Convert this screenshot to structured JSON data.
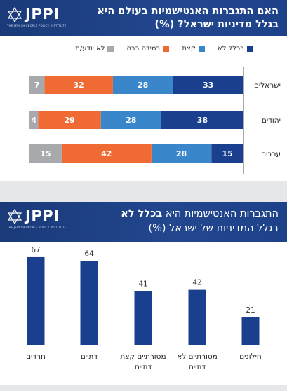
{
  "panel1": {
    "logo": {
      "name": "JPPI",
      "tagline": "THE JEWISH PEOPLE POLICY INSTITUTE"
    },
    "title": "האם התגברות האנטישמיות בעולם היא בגלל מדיניות ישראל? (%)",
    "legend": [
      {
        "label": "בכלל לא",
        "color": "#1b3f8f"
      },
      {
        "label": "קצת",
        "color": "#3a86cb"
      },
      {
        "label": "במידה רבה",
        "color": "#f06a33"
      },
      {
        "label": "לא יודע/ת",
        "color": "#a7a9ac"
      }
    ]
  },
  "panel2": {
    "logo": {
      "name": "JPPI",
      "tagline": "THE JEWISH PEOPLE POLICY INSTITUTE"
    },
    "title_part1": "התגברות האנטישמיות היא ",
    "title_bold": "בכלל לא",
    "title_part2": "בגלל המדיניות של ישראל (%)"
  },
  "chart_data": [
    {
      "type": "bar",
      "orientation": "horizontal-stacked",
      "categories": [
        "ישראלים",
        "יהודים",
        "ערבים"
      ],
      "series": [
        {
          "name": "בכלל לא",
          "color": "#1b3f8f",
          "values": [
            33,
            38,
            15
          ]
        },
        {
          "name": "קצת",
          "color": "#3a86cb",
          "values": [
            28,
            28,
            28
          ]
        },
        {
          "name": "במידה רבה",
          "color": "#f06a33",
          "values": [
            32,
            29,
            42
          ]
        },
        {
          "name": "לא יודע/ת",
          "color": "#a7a9ac",
          "values": [
            7,
            4,
            15
          ]
        }
      ],
      "title": "האם התגברות האנטישמיות בעולם היא בגלל מדיניות ישראל? (%)",
      "legend": "top"
    },
    {
      "type": "bar",
      "categories": [
        "חילונים",
        "מסורתיים לא דתיים",
        "מסורתיים קצת דתיים",
        "דתיים",
        "חרדים"
      ],
      "values": [
        21,
        42,
        41,
        64,
        67
      ],
      "color": "#1b3f8f",
      "ylim": [
        0,
        75
      ],
      "title": "התגברות האנטישמיות היא בכלל לא בגלל המדיניות של ישראל (%)"
    }
  ]
}
